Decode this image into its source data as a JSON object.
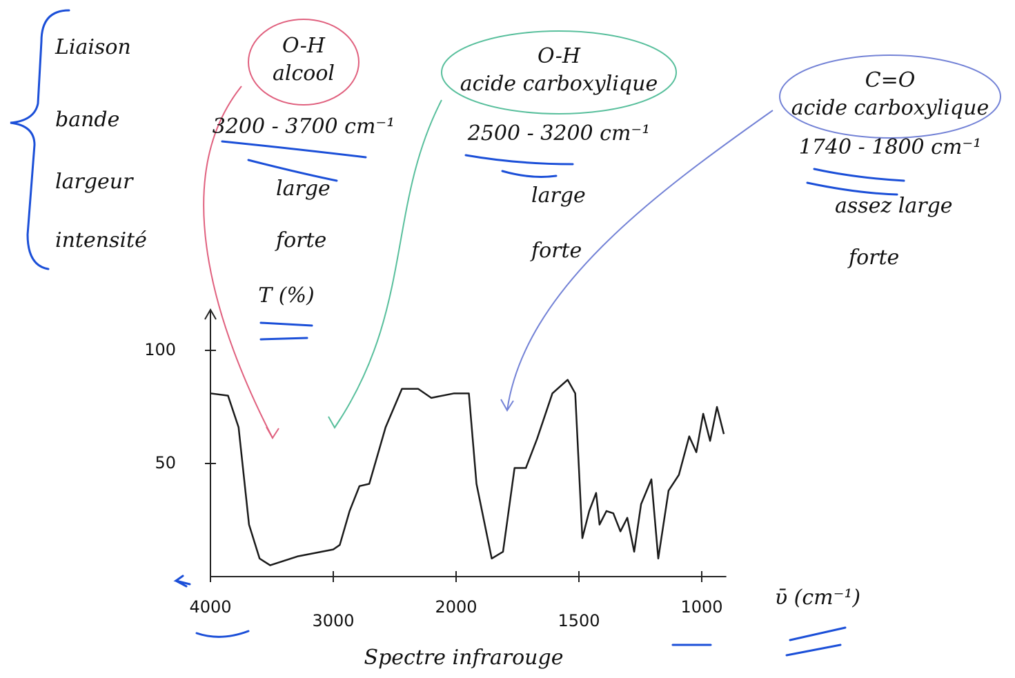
{
  "chart_data": {
    "type": "line",
    "title": "Spectre infrarouge",
    "x_label": "ῡ (cm⁻¹)",
    "y_label": "T (%)",
    "xlim": [
      4000,
      900
    ],
    "xticks": [
      4000,
      3000,
      2000,
      1500,
      1000
    ],
    "ylim": [
      0,
      118
    ],
    "yticks": [
      50,
      100
    ],
    "x": [
      4000,
      3857,
      3771,
      3686,
      3600,
      3514,
      3286,
      3000,
      2947,
      2867,
      2787,
      2707,
      2574,
      2441,
      2309,
      2202,
      2016,
      1948,
      1917,
      1855,
      1809,
      1762,
      1716,
      1670,
      1608,
      1546,
      1515,
      1486,
      1458,
      1430,
      1416,
      1388,
      1360,
      1331,
      1303,
      1275,
      1247,
      1205,
      1177,
      1135,
      1093,
      1051,
      1022,
      994,
      966,
      938,
      910
    ],
    "series": [
      {
        "color": "#1a1a1a",
        "values": [
          81,
          80,
          66,
          23,
          8,
          5,
          9,
          12,
          14,
          29,
          40,
          41,
          66,
          83,
          83,
          79,
          81,
          81,
          41,
          8,
          11,
          48,
          48,
          61,
          81,
          87,
          81,
          17,
          29,
          37,
          23,
          29,
          28,
          20,
          26,
          11,
          32,
          43,
          8,
          38,
          45,
          62,
          55,
          72,
          60,
          75,
          63
        ]
      }
    ],
    "row_labels": [
      "Liaison",
      "bande",
      "largeur",
      "intensité"
    ],
    "annotations": [
      {
        "bond": "O-H",
        "group": "alcool",
        "band": "3200 - 3700 cm⁻¹",
        "width": "large",
        "intensity": "forte",
        "color": "#e0607e"
      },
      {
        "bond": "O-H",
        "group": "acide carboxylique",
        "band": "2500 - 3200 cm⁻¹",
        "width": "large",
        "intensity": "forte",
        "color": "#58bf9c"
      },
      {
        "bond": "C=O",
        "group": "acide carboxylique",
        "band": "1740 - 1800 cm⁻¹",
        "width": "assez large",
        "intensity": "forte",
        "color": "#7382d6"
      }
    ]
  }
}
